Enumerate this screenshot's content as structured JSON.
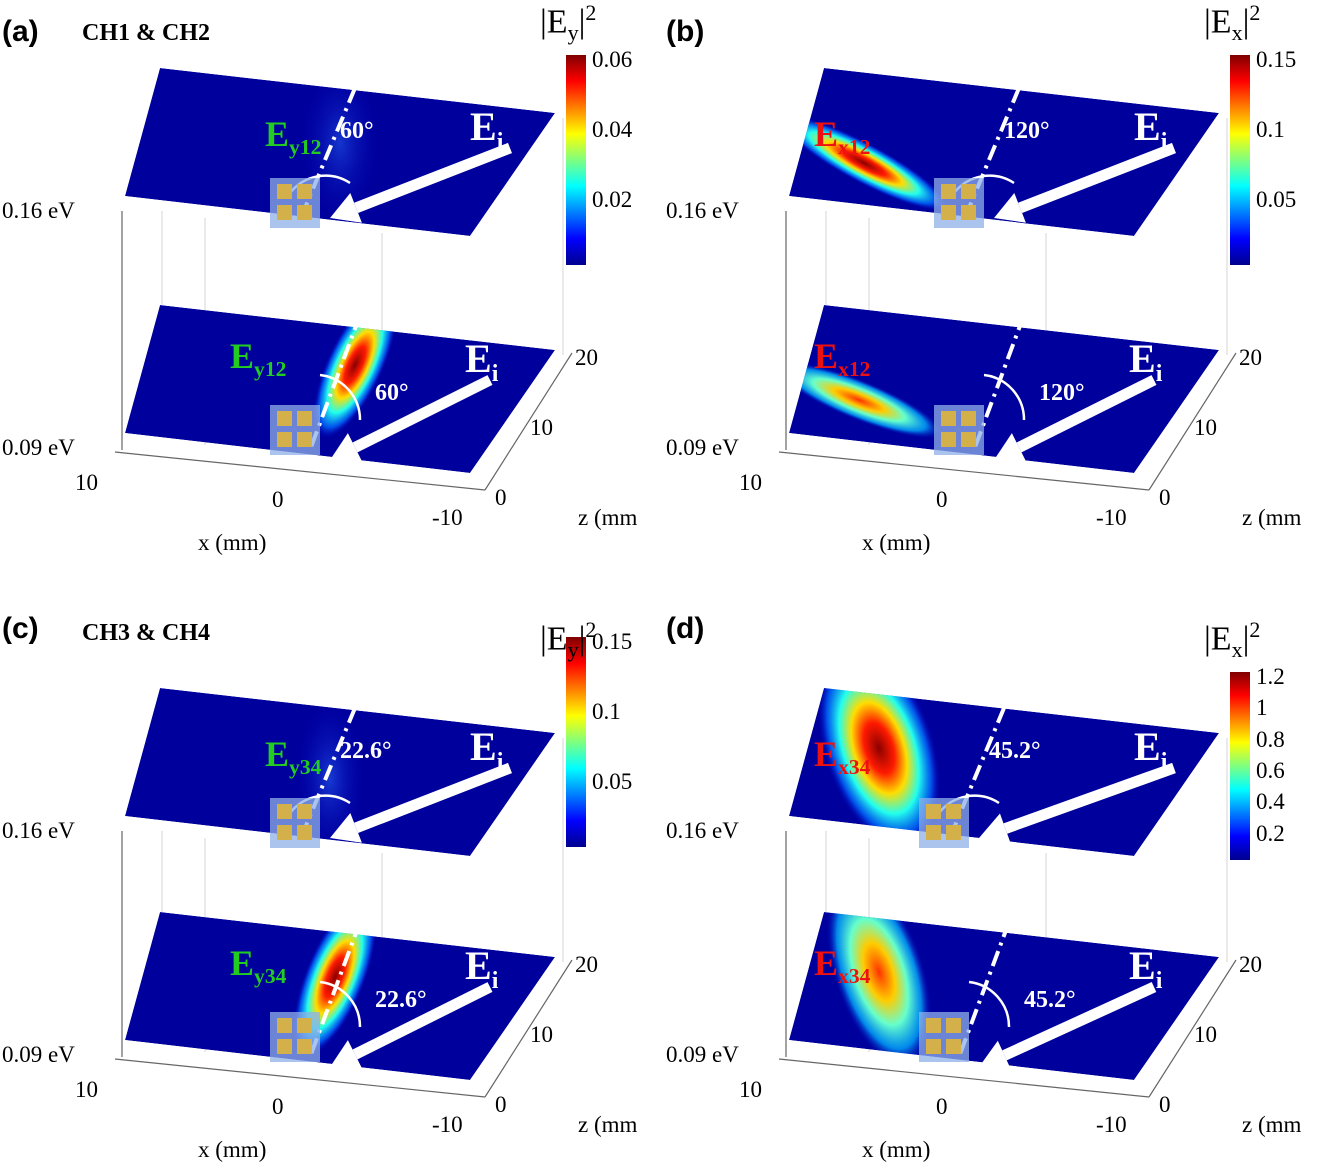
{
  "figure": {
    "panels": [
      {
        "id": "a",
        "label": "(a)",
        "group_title": "CH1 & CH2",
        "component": "Ey",
        "beam_label": "E",
        "beam_sub": "y12",
        "beam_color": "#22cc22",
        "colorbar": {
          "title_main": "|E",
          "title_sub": "y",
          "title_sup": "2",
          "ticks": [
            "0.06",
            "0.04",
            "0.02"
          ]
        },
        "top_angle": "60°",
        "bottom_angle": "60°",
        "incident": "E",
        "incident_sub": "i"
      },
      {
        "id": "b",
        "label": "(b)",
        "group_title": "",
        "component": "Ex",
        "beam_label": "E",
        "beam_sub": "x12",
        "beam_color": "#ee1111",
        "colorbar": {
          "title_main": "|E",
          "title_sub": "x",
          "title_sup": "2",
          "ticks": [
            "0.15",
            "0.1",
            "0.05"
          ]
        },
        "top_angle": "120°",
        "bottom_angle": "120°",
        "incident": "E",
        "incident_sub": "i"
      },
      {
        "id": "c",
        "label": "(c)",
        "group_title": "CH3 & CH4",
        "component": "Ey",
        "beam_label": "E",
        "beam_sub": "y34",
        "beam_color": "#22cc22",
        "colorbar": {
          "title_main": "|E",
          "title_sub": "y",
          "title_sup": "2",
          "ticks": [
            "0.15",
            "0.1",
            "0.05"
          ]
        },
        "top_angle": "22.6°",
        "bottom_angle": "22.6°",
        "incident": "E",
        "incident_sub": "i"
      },
      {
        "id": "d",
        "label": "(d)",
        "group_title": "",
        "component": "Ex",
        "beam_label": "E",
        "beam_sub": "x34",
        "beam_color": "#ee1111",
        "colorbar": {
          "title_main": "|E",
          "title_sub": "x",
          "title_sup": "2",
          "ticks": [
            "1.2",
            "1",
            "0.8",
            "0.6",
            "0.4",
            "0.2"
          ]
        },
        "top_angle": "45.2°",
        "bottom_angle": "45.2°",
        "incident": "E",
        "incident_sub": "i"
      }
    ],
    "axes": {
      "energy_top": "0.16 eV",
      "energy_bottom": "0.09 eV",
      "x_ticks": [
        "10",
        "0",
        "-10"
      ],
      "x_label": "x (mm)",
      "z_ticks": [
        "0",
        "10",
        "20"
      ],
      "z_label": "z (mm"
    }
  },
  "chart_data": [
    {
      "type": "heatmap",
      "title": "(a) CH1 & CH2 |Ey|^2",
      "slices": [
        "0.16 eV",
        "0.09 eV"
      ],
      "xlabel": "x (mm)",
      "zlabel": "z (mm)",
      "xlim": [
        -10,
        10
      ],
      "zlim": [
        0,
        20
      ],
      "colorbar_range": [
        0,
        0.06
      ],
      "colorbar_ticks": [
        0.02,
        0.04,
        0.06
      ],
      "beam": "Ey12",
      "angle_deg": 60
    },
    {
      "type": "heatmap",
      "title": "(b) |Ex|^2",
      "slices": [
        "0.16 eV",
        "0.09 eV"
      ],
      "xlabel": "x (mm)",
      "zlabel": "z (mm)",
      "xlim": [
        -10,
        10
      ],
      "zlim": [
        0,
        20
      ],
      "colorbar_range": [
        0,
        0.16
      ],
      "colorbar_ticks": [
        0.05,
        0.1,
        0.15
      ],
      "beam": "Ex12",
      "angle_deg": 120
    },
    {
      "type": "heatmap",
      "title": "(c) CH3 & CH4 |Ey|^2",
      "slices": [
        "0.16 eV",
        "0.09 eV"
      ],
      "xlabel": "x (mm)",
      "zlabel": "z (mm)",
      "xlim": [
        -10,
        10
      ],
      "zlim": [
        0,
        20
      ],
      "colorbar_range": [
        0,
        0.15
      ],
      "colorbar_ticks": [
        0.05,
        0.1,
        0.15
      ],
      "beam": "Ey34",
      "angle_deg": 22.6
    },
    {
      "type": "heatmap",
      "title": "(d) |Ex|^2",
      "slices": [
        "0.16 eV",
        "0.09 eV"
      ],
      "xlabel": "x (mm)",
      "zlabel": "z (mm)",
      "xlim": [
        -10,
        10
      ],
      "zlim": [
        0,
        20
      ],
      "colorbar_range": [
        0,
        1.25
      ],
      "colorbar_ticks": [
        0.2,
        0.4,
        0.6,
        0.8,
        1,
        1.2
      ],
      "beam": "Ex34",
      "angle_deg": 45.2
    }
  ]
}
